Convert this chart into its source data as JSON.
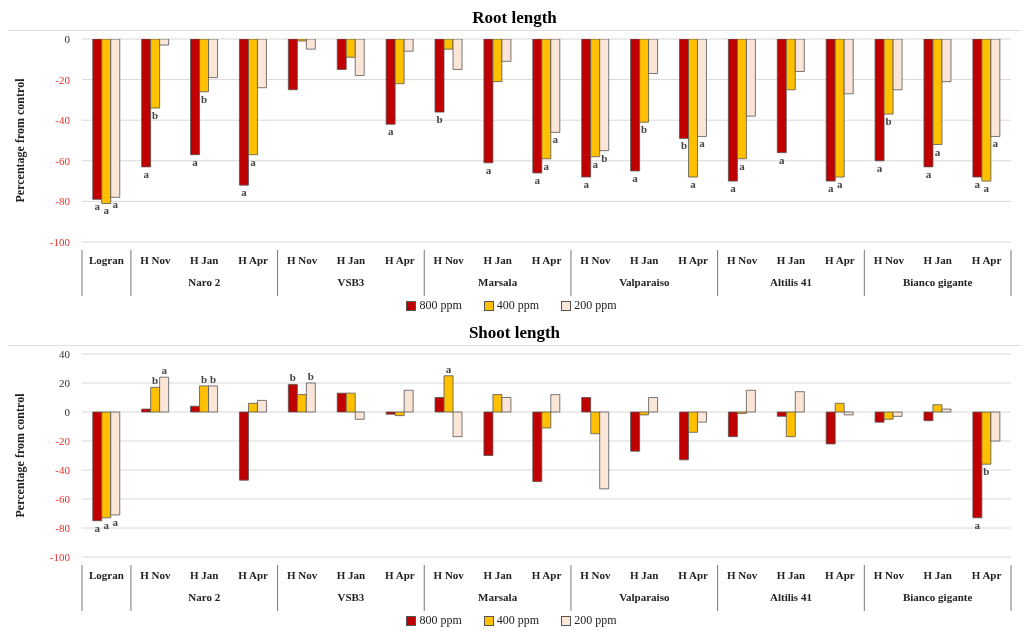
{
  "chart_data": [
    {
      "type": "bar",
      "title": "Root length",
      "ylabel": "Percentage from control",
      "categories": [
        "Logran",
        "H Nov",
        "H Jan",
        "H Apr",
        "H Nov",
        "H Jan",
        "H Apr",
        "H Nov",
        "H Jan",
        "H Apr",
        "H Nov",
        "H Jan",
        "H Apr",
        "H Nov",
        "H Jan",
        "H Apr",
        "H Nov",
        "H Jan",
        "H Apr"
      ],
      "annotations": [
        "Naro 2",
        "VSB3",
        "Marsala",
        "Valparaiso",
        "Altilis 41",
        "Bianco gigante"
      ],
      "series": [
        {
          "name": "800 ppm",
          "color": "#c00000",
          "values": [
            -79,
            -63,
            -57,
            -72,
            -25,
            -15,
            -42,
            -36,
            -61,
            -66,
            -68,
            -65,
            -49,
            -70,
            -56,
            -70,
            -60,
            -63,
            -68
          ],
          "value_labels": [
            "a",
            "a",
            "a",
            "a",
            null,
            null,
            "a",
            "b",
            "a",
            "a",
            "a",
            "a",
            "b",
            "a",
            "a",
            "a",
            "a",
            "a",
            "a"
          ]
        },
        {
          "name": "400 ppm",
          "color": "#ffc000",
          "values": [
            -81,
            -34,
            -26,
            -57,
            -1,
            -9,
            -22,
            -5,
            -21,
            -59,
            -58,
            -41,
            -68,
            -59,
            -25,
            -68,
            -37,
            -52,
            -70
          ],
          "value_labels": [
            "a",
            "b",
            "b",
            "a",
            null,
            null,
            null,
            null,
            null,
            "a",
            "a",
            "b",
            "a",
            "a",
            null,
            "a",
            "b",
            "a",
            "a"
          ]
        },
        {
          "name": "200 ppm",
          "color": "#fbe5d6",
          "values": [
            -78,
            -3,
            -19,
            -24,
            -5,
            -18,
            -6,
            -15,
            -11,
            -46,
            -55,
            -17,
            -48,
            -38,
            -16,
            -27,
            -25,
            -21,
            -48
          ],
          "value_labels": [
            "a",
            null,
            null,
            null,
            null,
            null,
            null,
            null,
            null,
            "a",
            "b",
            null,
            "a",
            null,
            null,
            null,
            null,
            null,
            "a"
          ]
        }
      ],
      "ylim": [
        -100,
        0
      ],
      "yticks": [
        -100,
        -80,
        -60,
        -40,
        -20,
        0
      ],
      "grid": "y",
      "legend": "bottom"
    },
    {
      "type": "bar",
      "title": "Shoot length",
      "ylabel": "Percentage from control",
      "categories": [
        "Logran",
        "H Nov",
        "H Jan",
        "H Apr",
        "H Nov",
        "H Jan",
        "H Apr",
        "H Nov",
        "H Jan",
        "H Apr",
        "H Nov",
        "H Jan",
        "H Apr",
        "H Nov",
        "H Jan",
        "H Apr",
        "H Nov",
        "H Jan",
        "H Apr"
      ],
      "annotations": [
        "Naro 2",
        "VSB3",
        "Marsala",
        "Valparaiso",
        "Altilis 41",
        "Bianco gigante"
      ],
      "series": [
        {
          "name": "800 ppm",
          "color": "#c00000",
          "values": [
            -75,
            2,
            4,
            -47,
            19,
            13,
            -1.5,
            10,
            -30,
            -48,
            10,
            -27,
            -33,
            -17,
            -3,
            -22,
            -7,
            -6,
            -73
          ],
          "value_labels": [
            "a",
            null,
            null,
            null,
            "b",
            null,
            null,
            null,
            null,
            null,
            null,
            null,
            null,
            null,
            null,
            null,
            null,
            null,
            "a"
          ]
        },
        {
          "name": "400 ppm",
          "color": "#ffc000",
          "values": [
            -73,
            17,
            18,
            6,
            12,
            13,
            -2.5,
            25,
            12,
            -11,
            -15,
            -2,
            -14,
            -1,
            -17,
            6,
            -5,
            5,
            -36
          ],
          "value_labels": [
            "a",
            "b",
            "b",
            null,
            null,
            null,
            null,
            "a",
            null,
            null,
            null,
            null,
            null,
            null,
            null,
            null,
            null,
            null,
            "b"
          ]
        },
        {
          "name": "200 ppm",
          "color": "#fbe5d6",
          "values": [
            -71,
            24,
            18,
            8,
            20,
            -5,
            15,
            -17,
            10,
            12,
            -53,
            10,
            -7,
            15,
            14,
            -2,
            -3,
            2,
            -20
          ],
          "value_labels": [
            "a",
            "a",
            "b",
            null,
            "b",
            null,
            null,
            null,
            null,
            null,
            null,
            null,
            null,
            null,
            null,
            null,
            null,
            null,
            null
          ]
        }
      ],
      "ylim": [
        -100,
        40
      ],
      "yticks": [
        -100,
        -80,
        -60,
        -40,
        -20,
        0,
        20,
        40
      ],
      "grid": "y",
      "legend": "bottom"
    }
  ]
}
